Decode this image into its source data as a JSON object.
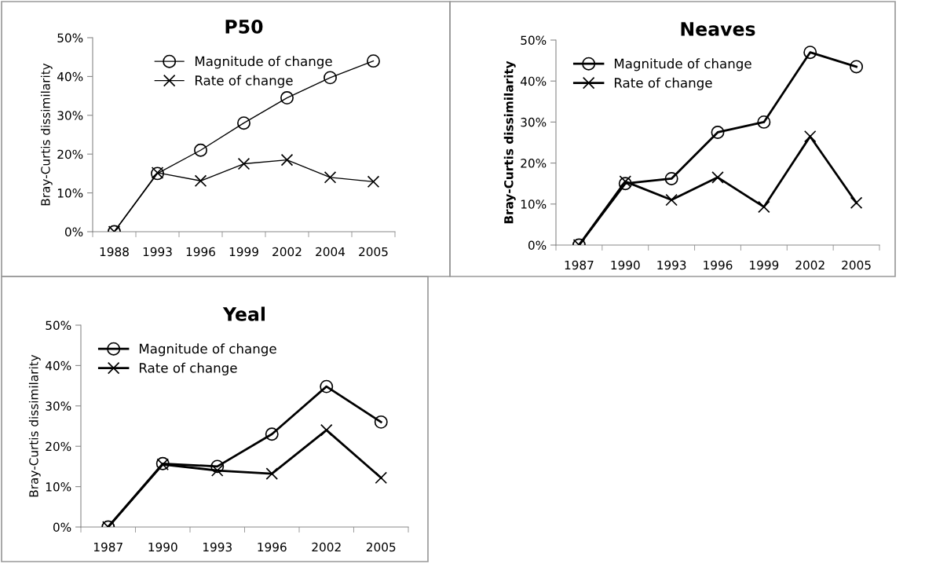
{
  "chart_data": [
    {
      "type": "line",
      "title": "P50",
      "ylabel": "Bray-Curtis dissimilarity",
      "categories": [
        "1988",
        "1993",
        "1996",
        "1999",
        "2002",
        "2004",
        "2005"
      ],
      "ylim": [
        0,
        50
      ],
      "yticks": [
        {
          "value": 0,
          "label": "0%"
        },
        {
          "value": 10,
          "label": "10%"
        },
        {
          "value": 20,
          "label": "20%"
        },
        {
          "value": 30,
          "label": "30%"
        },
        {
          "value": 40,
          "label": "40%"
        },
        {
          "value": 50,
          "label": "50%"
        }
      ],
      "grid": false,
      "legend": "top",
      "line_style": "solid",
      "series": [
        {
          "name": "Magnitude of change",
          "color": "#000000",
          "marker": "circle",
          "values": [
            0,
            15,
            21,
            28,
            34.5,
            39.7,
            44
          ]
        },
        {
          "name": "Rate of change",
          "color": "#000000",
          "marker": "cross",
          "values": [
            0,
            15.2,
            13.1,
            17.5,
            18.5,
            14,
            12.9
          ]
        }
      ]
    },
    {
      "type": "line",
      "title": "Neaves",
      "ylabel": "Bray-Curtis dissimilarity",
      "categories": [
        "1987",
        "1990",
        "1993",
        "1996",
        "1999",
        "2002",
        "2005"
      ],
      "ylim": [
        0,
        50
      ],
      "yticks": [
        {
          "value": 0,
          "label": "0%"
        },
        {
          "value": 10,
          "label": "10%"
        },
        {
          "value": 20,
          "label": "20%"
        },
        {
          "value": 30,
          "label": "30%"
        },
        {
          "value": 40,
          "label": "40%"
        },
        {
          "value": 50,
          "label": "50%"
        }
      ],
      "grid": false,
      "legend": "top left",
      "line_style": "solid",
      "series": [
        {
          "name": "Magnitude of change",
          "color": "#000000",
          "marker": "circle",
          "values": [
            0,
            15,
            16.2,
            27.5,
            30,
            47,
            43.5
          ]
        },
        {
          "name": "Rate of change",
          "color": "#000000",
          "marker": "cross",
          "values": [
            0,
            15.5,
            11,
            16.5,
            9.3,
            26.5,
            10.3
          ]
        }
      ]
    },
    {
      "type": "line",
      "title": "Yeal",
      "ylabel": "Bray-Curtis dissimilarity",
      "categories": [
        "1987",
        "1990",
        "1993",
        "1996",
        "2002",
        "2005"
      ],
      "ylim": [
        0,
        50
      ],
      "yticks": [
        {
          "value": 0,
          "label": "0%"
        },
        {
          "value": 10,
          "label": "10%"
        },
        {
          "value": 20,
          "label": "20%"
        },
        {
          "value": 30,
          "label": "30%"
        },
        {
          "value": 40,
          "label": "40%"
        },
        {
          "value": 50,
          "label": "50%"
        }
      ],
      "grid": false,
      "legend": "top left",
      "line_style": "solid",
      "series": [
        {
          "name": "Magnitude of change",
          "color": "#000000",
          "marker": "circle",
          "values": [
            0,
            15.7,
            15,
            23,
            34.8,
            26
          ]
        },
        {
          "name": "Rate of change",
          "color": "#000000",
          "marker": "cross",
          "values": [
            0,
            15.5,
            14,
            13.2,
            24,
            12.2
          ]
        }
      ]
    }
  ]
}
